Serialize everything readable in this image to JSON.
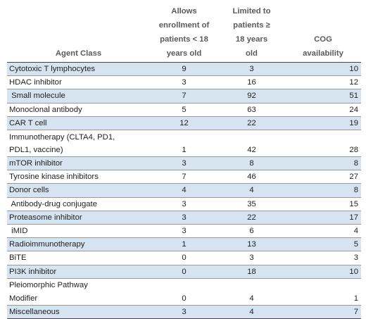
{
  "table": {
    "headers": [
      [
        "Agent Class"
      ],
      [
        "Allows",
        "enrollment of",
        "patients < 18",
        "years old"
      ],
      [
        "Limited to",
        "patients ≥",
        "18 years",
        "old"
      ],
      [
        "COG",
        "availability"
      ]
    ],
    "rows": [
      {
        "label": [
          "Cytotoxic T lymphocytes"
        ],
        "a": "9",
        "b": "3",
        "c": "10",
        "shade": true
      },
      {
        "label": [
          "HDAC inhibitor"
        ],
        "a": "3",
        "b": "16",
        "c": "12",
        "shade": false
      },
      {
        "label": [
          " Small molecule"
        ],
        "a": "7",
        "b": "92",
        "c": "51",
        "shade": true
      },
      {
        "label": [
          "Monoclonal antibody"
        ],
        "a": "5",
        "b": "63",
        "c": "24",
        "shade": false
      },
      {
        "label": [
          "CAR T cell"
        ],
        "a": "12",
        "b": "22",
        "c": "19",
        "shade": true
      },
      {
        "label": [
          "Immunotherapy (CLTA4, PD1,",
          "PDL1, vaccine)"
        ],
        "a": "1",
        "b": "42",
        "c": "28",
        "shade": false
      },
      {
        "label": [
          "mTOR inhibitor"
        ],
        "a": "3",
        "b": "8",
        "c": "8",
        "shade": true
      },
      {
        "label": [
          "Tyrosine kinase inhibitors"
        ],
        "a": "7",
        "b": "46",
        "c": "27",
        "shade": false
      },
      {
        "label": [
          "Donor cells"
        ],
        "a": "4",
        "b": "4",
        "c": "8",
        "shade": true
      },
      {
        "label": [
          " Antibody-drug conjugate"
        ],
        "a": "3",
        "b": "35",
        "c": "15",
        "shade": false
      },
      {
        "label": [
          "Proteasome inhibitor"
        ],
        "a": "3",
        "b": "22",
        "c": "17",
        "shade": true
      },
      {
        "label": [
          " iMID"
        ],
        "a": "3",
        "b": "6",
        "c": "4",
        "shade": false
      },
      {
        "label": [
          "Radioimmunotherapy"
        ],
        "a": "1",
        "b": "13",
        "c": "5",
        "shade": true
      },
      {
        "label": [
          "BiTE"
        ],
        "a": "0",
        "b": "3",
        "c": "3",
        "shade": false
      },
      {
        "label": [
          "PI3K inhibitor"
        ],
        "a": "0",
        "b": "18",
        "c": "10",
        "shade": true
      },
      {
        "label": [
          "Pleiomorphic Pathway",
          "Modifier"
        ],
        "a": "0",
        "b": "4",
        "c": "1",
        "shade": false
      },
      {
        "label": [
          "Miscellaneous"
        ],
        "a": "3",
        "b": "4",
        "c": "7",
        "shade": true
      }
    ]
  }
}
